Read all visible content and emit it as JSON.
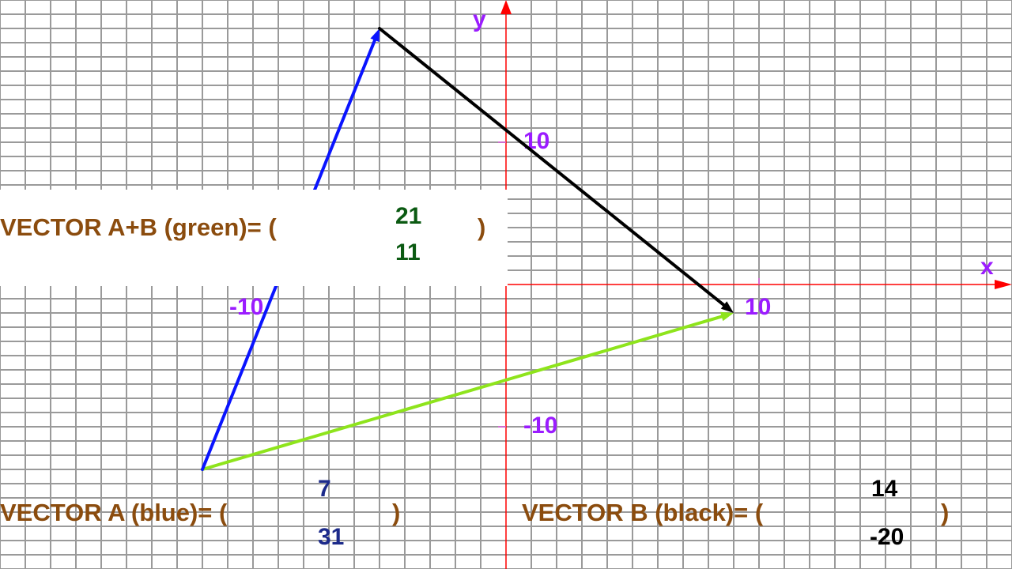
{
  "graph": {
    "x_axis_label": "x",
    "y_axis_label": "y",
    "x_range": [
      -20,
      20
    ],
    "y_range": [
      -20,
      20
    ],
    "grid_step": 1,
    "ticks": {
      "x_pos": "10",
      "x_neg": "-10",
      "y_pos": "10",
      "y_neg": "-10"
    },
    "colors": {
      "axis": "#ff0000",
      "axis_label": "#9b1cff",
      "grid": "#9a9a9a",
      "text": "#8b4c0e"
    }
  },
  "vectors": {
    "a": {
      "start": [
        -12,
        -13
      ],
      "components": [
        7,
        31
      ],
      "color": "#0a14ff"
    },
    "b": {
      "start": [
        -5,
        18
      ],
      "components": [
        14,
        -20
      ],
      "color": "#000000"
    },
    "sum": {
      "start": [
        -12,
        -13
      ],
      "components": [
        21,
        11
      ],
      "color": "#8ee41c"
    }
  },
  "labels": {
    "sum": {
      "text": "VECTOR A+B (green)=  (",
      "close": ")",
      "top": "21",
      "bottom": "11",
      "num_color": "#0b5a12"
    },
    "a": {
      "text": "VECTOR A (blue)= (",
      "close": ")",
      "top": "7",
      "bottom": "31",
      "num_color": "#1c2a8a"
    },
    "b": {
      "text": "VECTOR B (black)=  (",
      "close": ")",
      "top": "14",
      "bottom": "-20",
      "num_color": "#000000"
    }
  }
}
